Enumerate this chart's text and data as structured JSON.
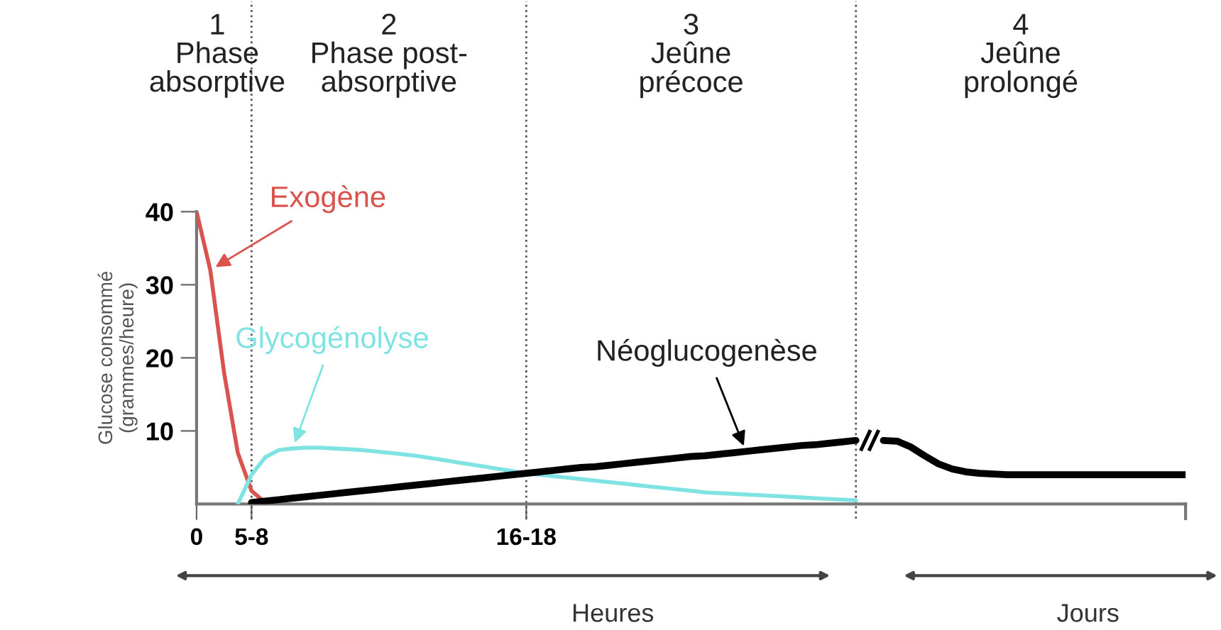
{
  "chart_data": {
    "type": "line",
    "ylabel": "Glucose consommé\n(grammes/heure)",
    "categories": [
      "0",
      null,
      null,
      null,
      "5-8",
      null,
      null,
      null,
      null,
      null,
      null,
      null,
      null,
      null,
      null,
      null,
      null,
      null,
      null,
      null,
      null,
      null,
      null,
      null,
      "16-18",
      null,
      null,
      null,
      null,
      null,
      null,
      null,
      null,
      null,
      null,
      null,
      null,
      null,
      null,
      null,
      null,
      null,
      null,
      null,
      null,
      null,
      null,
      null,
      null,
      null,
      null,
      null,
      null,
      null,
      null,
      null,
      null,
      null,
      null,
      null,
      null,
      null,
      null,
      null,
      null,
      null,
      null,
      null,
      null,
      null,
      null,
      null,
      null
    ],
    "ylim": [
      0,
      40
    ],
    "yticks": [
      10,
      20,
      30,
      40
    ],
    "series": [
      {
        "name": "Exogène",
        "color": "#d9534f",
        "values": [
          40,
          32,
          18,
          7,
          1.8,
          0.2,
          null,
          null,
          null,
          null,
          null,
          null,
          null,
          null,
          null,
          null,
          null,
          null,
          null,
          null,
          null,
          null,
          null,
          null,
          null,
          null,
          null,
          null,
          null,
          null,
          null,
          null,
          null,
          null,
          null,
          null,
          null,
          null,
          null,
          null,
          null,
          null,
          null,
          null,
          null,
          null,
          null,
          null,
          null,
          null,
          null,
          null,
          null,
          null,
          null,
          null,
          null,
          null,
          null,
          null,
          null,
          null,
          null,
          null,
          null,
          null,
          null,
          null,
          null,
          null,
          null,
          null,
          null
        ]
      },
      {
        "name": "Glycogénolyse",
        "color": "#7fe3e3",
        "values": [
          null,
          null,
          null,
          0,
          4,
          6.4,
          7.4,
          7.6,
          7.7,
          7.7,
          7.6,
          7.5,
          7.4,
          7.2,
          7.0,
          6.8,
          6.6,
          6.3,
          6.0,
          5.7,
          5.4,
          5.1,
          4.8,
          4.5,
          4.2,
          4.0,
          3.8,
          3.6,
          3.4,
          3.2,
          3.0,
          2.8,
          2.6,
          2.4,
          2.2,
          2.0,
          1.8,
          1.6,
          1.5,
          1.4,
          1.3,
          1.2,
          1.1,
          1.0,
          0.9,
          0.8,
          0.7,
          0.6,
          0.5,
          null,
          null,
          null,
          null,
          null,
          null,
          null,
          null,
          null,
          null,
          null,
          null,
          null,
          null,
          null,
          null,
          null,
          null,
          null,
          null,
          null,
          null,
          null,
          null
        ]
      },
      {
        "name": "Néoglucogenèse",
        "color": "#000000",
        "values": [
          null,
          null,
          null,
          null,
          0.2,
          0.4,
          0.6,
          0.8,
          1.0,
          1.2,
          1.4,
          1.6,
          1.8,
          2.0,
          2.2,
          2.4,
          2.6,
          2.8,
          3.0,
          3.2,
          3.4,
          3.6,
          3.8,
          4.0,
          4.2,
          4.4,
          4.6,
          4.8,
          5.0,
          5.1,
          5.3,
          5.5,
          5.7,
          5.9,
          6.1,
          6.3,
          6.5,
          6.6,
          6.8,
          7.0,
          7.2,
          7.4,
          7.6,
          7.8,
          8.0,
          8.1,
          8.3,
          8.5,
          8.7,
          null,
          8.7,
          8.6,
          7.8,
          6.6,
          5.5,
          4.8,
          4.4,
          4.2,
          4.1,
          4.0,
          4.0,
          4.0,
          4.0,
          4.0,
          4.0,
          4.0,
          4.0,
          4.0,
          4.0,
          4.0,
          4.0,
          4.0,
          4.0
        ]
      }
    ],
    "annotations": [
      "1\nPhase\nabsorptive",
      "2\nPhase post-\nabsorptive",
      "3\nJeûne\nprécoce",
      "4\nJeûne\nprolongé",
      "Heures",
      "Jours"
    ],
    "grid": "x",
    "legend": false,
    "marker": "none",
    "line_style": "solid"
  }
}
